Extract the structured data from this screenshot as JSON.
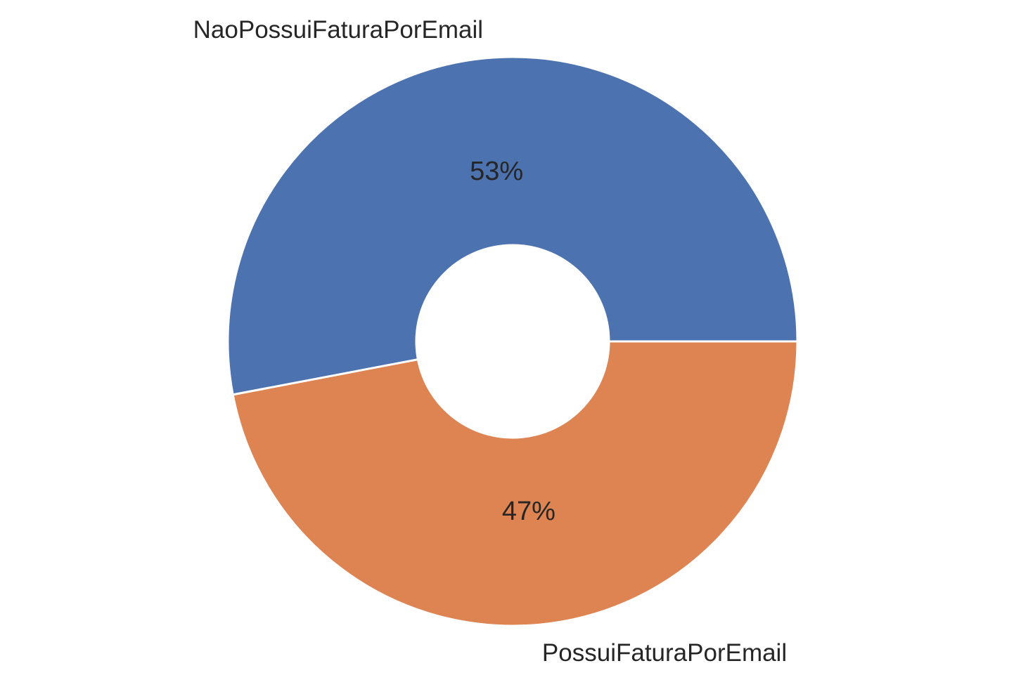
{
  "chart_data": {
    "type": "pie",
    "variant": "donut",
    "title": "",
    "categories": [
      "NaoPossuiFaturaPorEmail",
      "PossuiFaturaPorEmail"
    ],
    "values": [
      53,
      47
    ],
    "value_labels": [
      "53%",
      "47%"
    ],
    "colors": [
      "#4c72b0",
      "#dd8452"
    ],
    "start": "right, counter-clockwise",
    "legend": "none",
    "grid": false
  }
}
